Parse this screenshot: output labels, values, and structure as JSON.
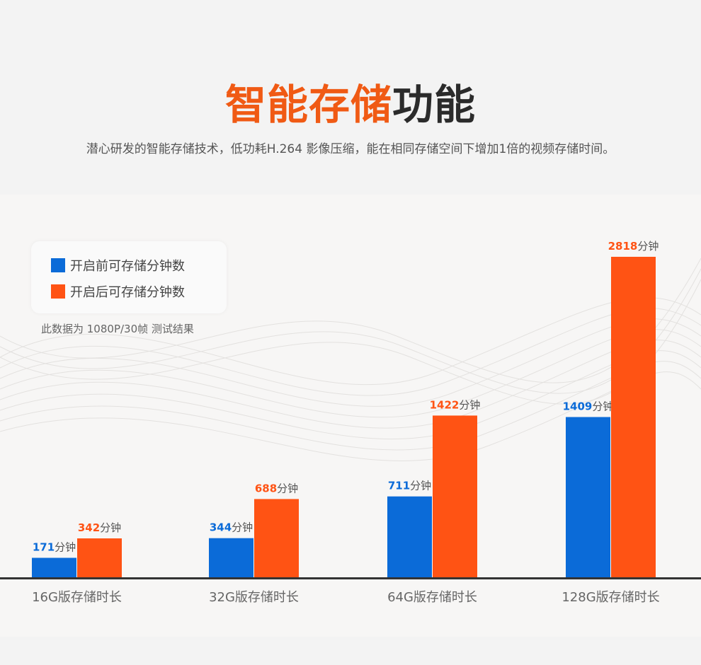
{
  "header": {
    "title_accent": "智能存储",
    "title_rest": "功能",
    "subtitle": "潜心研发的智能存储技术，低功耗H.264 影像压缩，能在相同存储空间下增加1倍的视频存储时间。"
  },
  "legend": {
    "items": [
      {
        "label": "开启前可存储分钟数",
        "color": "#0b6bd8"
      },
      {
        "label": "开启后可存储分钟数",
        "color": "#ff5314"
      }
    ]
  },
  "note": "此数据为 1080P/30帧 测试结果",
  "colors": {
    "before": "#0b6bd8",
    "after": "#ff5314",
    "title_accent": "#f05a14",
    "axis": "#333333"
  },
  "chart_data": {
    "type": "bar",
    "categories": [
      "16G版存储时长",
      "32G版存储时长",
      "64G版存储时长",
      "128G版存储时长"
    ],
    "series": [
      {
        "name": "开启前可存储分钟数",
        "values": [
          171,
          344,
          711,
          1409
        ]
      },
      {
        "name": "开启后可存储分钟数",
        "values": [
          342,
          688,
          1422,
          2818
        ]
      }
    ],
    "unit": "分钟",
    "ylim": [
      0,
      2818
    ],
    "grid": false,
    "legend_position": "top-left"
  }
}
